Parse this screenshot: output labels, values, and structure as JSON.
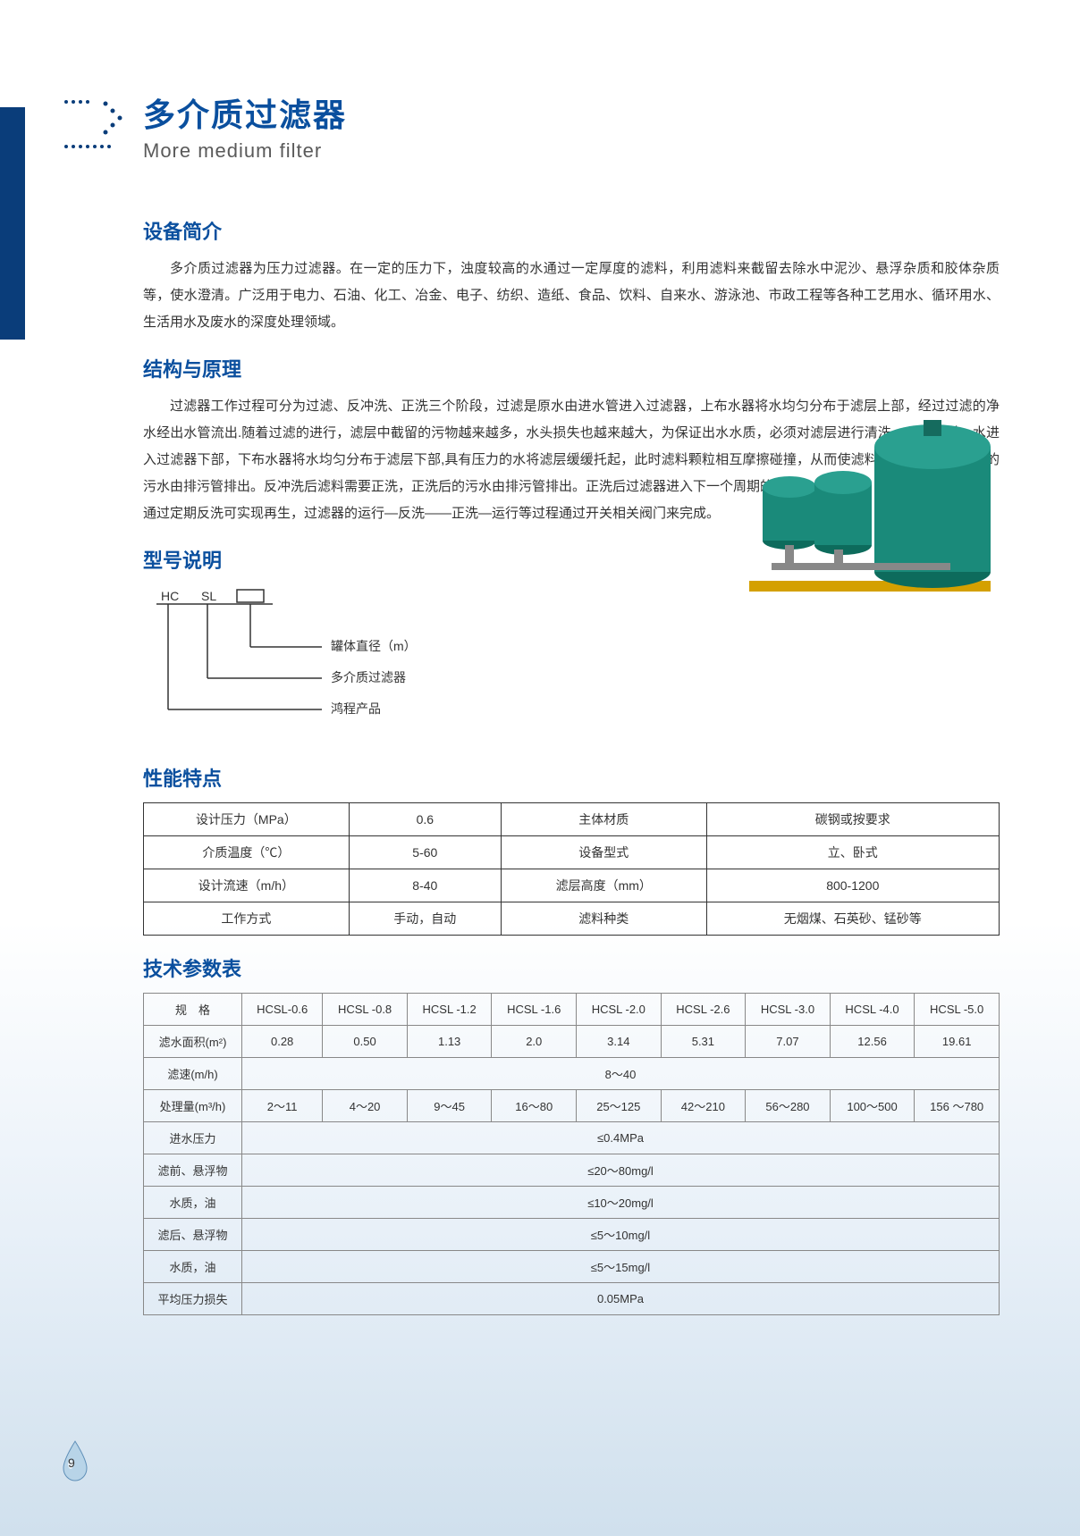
{
  "header": {
    "title_cn": "多介质过滤器",
    "title_en": "More medium filter",
    "accent_color": "#0a4f9e",
    "bar_color": "#0a3d7a"
  },
  "sections": {
    "intro": {
      "title": "设备简介",
      "p1": "多介质过滤器为压力过滤器。在一定的压力下，浊度较高的水通过一定厚度的滤料，利用滤料来截留去除水中泥沙、悬浮杂质和胶体杂质等，使水澄清。广泛用于电力、石油、化工、冶金、电子、纺织、造纸、食品、饮料、自来水、游泳池、市政工程等各种工艺用水、循环用水、生活用水及废水的深度处理领域。"
    },
    "structure": {
      "title": "结构与原理",
      "p1": "过滤器工作过程可分为过滤、反冲洗、正洗三个阶段，过滤是原水由进水管进入过滤器，上布水器将水均匀分布于滤层上部，经过过滤的净水经出水管流出.随着过滤的进行，滤层中截留的污物越来越多，水头损失也越来越大，为保证出水水质，必须对滤层进行清洗，反冲洗时，水进入过滤器下部，下布水器将水均匀分布于滤层下部,具有压力的水将滤层缓缓托起，此时滤料颗粒相互摩擦碰撞，从而使滤料冲洗干净，反冲洗的污水由排污管排出。反冲洗后滤料需要正洗，正洗后的污水由排污管排出。正洗后过滤器进入下一个周期的过滤。",
      "p2": "通过定期反洗可实现再生，过滤器的运行—反洗——正洗—运行等过程通过开关相关阀门来完成。"
    },
    "model": {
      "title": "型号说明",
      "hc": "HC",
      "sl": "SL",
      "label1": "罐体直径（m）",
      "label2": "多介质过滤器",
      "label3": "鸿程产品"
    },
    "perf": {
      "title": "性能特点",
      "rows": [
        [
          "设计压力（MPa）",
          "0.6",
          "主体材质",
          "碳钢或按要求"
        ],
        [
          "介质温度（℃）",
          "5-60",
          "设备型式",
          "立、卧式"
        ],
        [
          "设计流速（m/h）",
          "8-40",
          "滤层高度（mm）",
          "800-1200"
        ],
        [
          "工作方式",
          "手动，自动",
          "滤料种类",
          "无烟煤、石英砂、锰砂等"
        ]
      ]
    },
    "tech": {
      "title": "技术参数表",
      "header": [
        "规　格",
        "HCSL-0.6",
        "HCSL -0.8",
        "HCSL -1.2",
        "HCSL -1.6",
        "HCSL -2.0",
        "HCSL -2.6",
        "HCSL -3.0",
        "HCSL -4.0",
        "HCSL -5.0"
      ],
      "area": [
        "滤水面积(m²)",
        "0.28",
        "0.50",
        "1.13",
        "2.0",
        "3.14",
        "5.31",
        "7.07",
        "12.56",
        "19.61"
      ],
      "speed_label": "滤速(m/h)",
      "speed_value": "8～40",
      "capacity": [
        "处理量(m³/h)",
        "2～11",
        "4～20",
        "9～45",
        "16～80",
        "25～125",
        "42～210",
        "56～280",
        "100～500",
        "156 ～780"
      ],
      "rows_merged": [
        [
          "进水压力",
          "≤0.4MPa"
        ],
        [
          "滤前、悬浮物",
          "≤20～80mg/l"
        ],
        [
          "水质，油",
          "≤10～20mg/l"
        ],
        [
          "滤后、悬浮物",
          "≤5～10mg/l"
        ],
        [
          "水质，油",
          "≤5～15mg/l"
        ],
        [
          "平均压力损失",
          "0.05MPa"
        ]
      ]
    }
  },
  "product_image": {
    "tank_color": "#1a8a7a",
    "base_color": "#d4a000"
  },
  "page_number": "9"
}
